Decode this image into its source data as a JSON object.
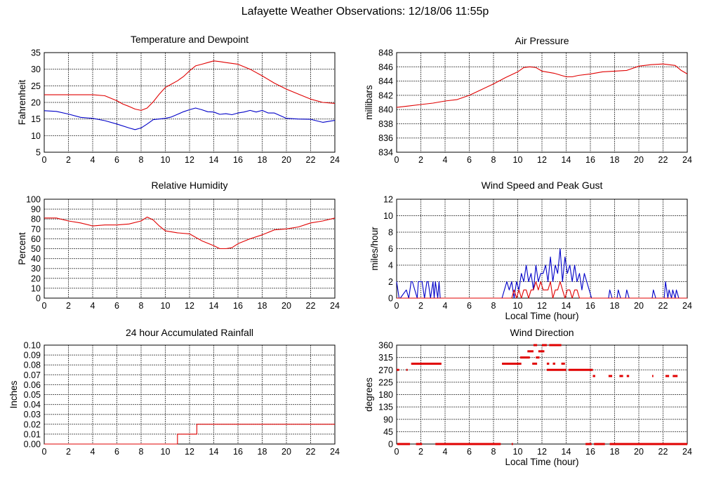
{
  "page": {
    "title": "Lafayette Weather Observations: 12/18/06 11:55p"
  },
  "colors": {
    "red": "#e00000",
    "blue": "#0000c8",
    "grid": "#555555"
  },
  "chart_data": [
    {
      "id": "temp",
      "type": "line",
      "title": "Temperature and Dewpoint",
      "xlabel": "",
      "ylabel": "Fahrenheit",
      "xlim": [
        0,
        24
      ],
      "ylim": [
        5,
        35
      ],
      "xticks": [
        0,
        2,
        4,
        6,
        8,
        10,
        12,
        14,
        16,
        18,
        20,
        22,
        24
      ],
      "yticks": [
        5,
        10,
        15,
        20,
        25,
        30,
        35
      ],
      "series": [
        {
          "color": "red",
          "x": [
            0,
            1,
            2,
            3,
            4,
            5,
            6,
            6.5,
            7,
            7.5,
            8,
            8.5,
            9,
            9.5,
            10,
            10.5,
            11,
            11.5,
            12,
            12.5,
            13,
            13.5,
            14,
            14.5,
            15,
            16,
            17,
            18,
            19,
            20,
            21,
            22,
            23,
            24
          ],
          "y": [
            22.3,
            22.3,
            22.3,
            22.3,
            22.3,
            22,
            20.5,
            19.5,
            18.8,
            18,
            17.6,
            18.3,
            20.2,
            22.5,
            24.5,
            25.5,
            26.5,
            27.8,
            29.5,
            31,
            31.5,
            32,
            32.5,
            32.3,
            32,
            31.5,
            30,
            28,
            25.8,
            24,
            22.5,
            21,
            20,
            19.7
          ]
        },
        {
          "color": "blue",
          "x": [
            0,
            1,
            2,
            3,
            4,
            5,
            6,
            7,
            7.5,
            8,
            8.5,
            9,
            10,
            10.5,
            11,
            11.5,
            12,
            12.5,
            13,
            13.5,
            14,
            14.5,
            15,
            15.5,
            16,
            16.5,
            17,
            17.5,
            18,
            18.5,
            19,
            20,
            21,
            22,
            23,
            24
          ],
          "y": [
            17.5,
            17.3,
            16.5,
            15.5,
            15.2,
            14.5,
            13.5,
            12.3,
            11.8,
            12.3,
            13.5,
            14.8,
            15.2,
            15.6,
            16.4,
            17.2,
            17.8,
            18.3,
            17.8,
            17.2,
            17.1,
            16.4,
            16.6,
            16.3,
            16.8,
            17.1,
            17.6,
            17.1,
            17.6,
            16.8,
            16.8,
            15.2,
            15,
            14.9,
            14,
            14.6
          ]
        }
      ]
    },
    {
      "id": "pressure",
      "type": "line",
      "title": "Air Pressure",
      "xlabel": "",
      "ylabel": "millibars",
      "xlim": [
        0,
        24
      ],
      "ylim": [
        834,
        848
      ],
      "xticks": [
        0,
        2,
        4,
        6,
        8,
        10,
        12,
        14,
        16,
        18,
        20,
        22,
        24
      ],
      "yticks": [
        834,
        836,
        838,
        840,
        842,
        844,
        846,
        848
      ],
      "series": [
        {
          "color": "red",
          "x": [
            0,
            1,
            2,
            3,
            4,
            5,
            6,
            7,
            8,
            9,
            10,
            10.5,
            11,
            11.5,
            12,
            13,
            14,
            14.5,
            15,
            16,
            17,
            18,
            19,
            20,
            21,
            22,
            23,
            23.5,
            24
          ],
          "y": [
            840.3,
            840.5,
            840.7,
            840.9,
            841.2,
            841.4,
            842,
            842.8,
            843.6,
            844.5,
            845.3,
            845.9,
            846,
            845.9,
            845.4,
            845.1,
            844.6,
            844.6,
            844.8,
            845,
            845.3,
            845.4,
            845.5,
            846.1,
            846.3,
            846.4,
            846.2,
            845.5,
            845
          ]
        }
      ]
    },
    {
      "id": "humidity",
      "type": "line",
      "title": "Relative Humidity",
      "xlabel": "",
      "ylabel": "Percent",
      "xlim": [
        0,
        24
      ],
      "ylim": [
        0,
        100
      ],
      "xticks": [
        0,
        2,
        4,
        6,
        8,
        10,
        12,
        14,
        16,
        18,
        20,
        22,
        24
      ],
      "yticks": [
        0,
        10,
        20,
        30,
        40,
        50,
        60,
        70,
        80,
        90,
        100
      ],
      "series": [
        {
          "color": "red",
          "x": [
            0,
            1,
            2,
            3,
            4,
            5,
            6,
            7,
            8,
            8.5,
            9,
            9.5,
            10,
            11,
            12,
            13,
            14,
            14.5,
            15,
            15.5,
            16,
            17,
            18,
            19,
            20,
            21,
            22,
            23,
            24
          ],
          "y": [
            81,
            81,
            78,
            76,
            73,
            74,
            74,
            75,
            78,
            82,
            79,
            73,
            68,
            66,
            65,
            58,
            53,
            50,
            50,
            51,
            55,
            60,
            64,
            69,
            70,
            72,
            76,
            78,
            81
          ]
        }
      ]
    },
    {
      "id": "wind",
      "type": "line",
      "title": "Wind Speed and Peak Gust",
      "xlabel": "Local Time (hour)",
      "ylabel": "miles/hour",
      "xlim": [
        0,
        24
      ],
      "ylim": [
        0,
        12
      ],
      "xticks": [
        0,
        2,
        4,
        6,
        8,
        10,
        12,
        14,
        16,
        18,
        20,
        22,
        24
      ],
      "yticks": [
        0,
        2,
        4,
        6,
        8,
        10,
        12
      ],
      "series": [
        {
          "color": "blue",
          "x": [
            0,
            0.2,
            0.3,
            0.8,
            1,
            1.2,
            1.3,
            1.7,
            1.8,
            2.1,
            2.3,
            2.5,
            2.6,
            2.8,
            3,
            3.1,
            3.2,
            3.4,
            3.5,
            3.6,
            3.8,
            8.7,
            8.9,
            9.1,
            9.3,
            9.5,
            9.7,
            9.9,
            10.1,
            10.3,
            10.5,
            10.7,
            10.9,
            11.1,
            11.3,
            11.5,
            11.7,
            11.9,
            12.1,
            12.3,
            12.5,
            12.7,
            12.9,
            13.1,
            13.3,
            13.5,
            13.7,
            13.9,
            14.1,
            14.3,
            14.5,
            14.7,
            14.9,
            15.1,
            15.3,
            15.5,
            15.7,
            15.9,
            16.1,
            17.5,
            17.6,
            17.8,
            18.2,
            18.3,
            18.5,
            18.9,
            19,
            19.2,
            21.1,
            21.2,
            21.4,
            22.1,
            22.2,
            22.4,
            22.5,
            22.7,
            22.8,
            23,
            23.1,
            23.3
          ],
          "y": [
            2,
            0,
            0,
            1,
            0,
            2,
            2,
            0,
            2,
            2,
            0,
            2,
            2,
            0,
            2,
            0,
            2,
            0,
            2,
            0,
            0,
            0,
            1,
            2,
            1,
            2,
            0,
            2,
            1,
            3,
            2,
            4,
            2,
            3,
            1,
            4,
            2,
            3,
            3,
            4,
            2,
            5,
            2,
            4,
            3,
            6,
            2,
            5,
            3,
            4,
            2,
            4,
            2,
            3,
            1,
            3,
            2,
            1,
            0,
            0,
            1,
            0,
            0,
            1,
            0,
            0,
            1,
            0,
            0,
            1,
            0,
            0,
            2,
            0,
            1,
            0,
            1,
            0,
            1,
            0
          ]
        },
        {
          "color": "red",
          "x": [
            0,
            9.5,
            9.7,
            9.9,
            10.1,
            10.3,
            10.5,
            10.7,
            10.9,
            11.1,
            11.3,
            11.5,
            11.7,
            11.9,
            12.1,
            12.3,
            12.5,
            12.7,
            12.9,
            13.1,
            13.3,
            13.5,
            13.7,
            13.9,
            14.1,
            14.3,
            14.5,
            14.7,
            14.9,
            15.1,
            15.3,
            24
          ],
          "y": [
            0,
            0,
            1,
            0,
            1,
            0,
            1,
            1,
            0,
            1,
            1,
            2,
            1,
            2,
            1,
            1,
            1,
            2,
            0,
            1,
            1,
            2,
            1,
            0,
            1,
            1,
            0,
            1,
            1,
            0,
            0,
            0
          ]
        }
      ]
    },
    {
      "id": "rain",
      "type": "line",
      "title": "24 hour Accumulated Rainfall",
      "xlabel": "",
      "ylabel": "Inches",
      "xlim": [
        0,
        24
      ],
      "ylim": [
        0,
        0.1
      ],
      "xticks": [
        0,
        2,
        4,
        6,
        8,
        10,
        12,
        14,
        16,
        18,
        20,
        22,
        24
      ],
      "yticks": [
        "0.00",
        "0.01",
        "0.02",
        "0.03",
        "0.04",
        "0.05",
        "0.06",
        "0.07",
        "0.08",
        "0.09",
        "0.10"
      ],
      "series": [
        {
          "color": "red",
          "x": [
            0,
            11,
            11,
            12.6,
            12.6,
            24
          ],
          "y": [
            0,
            0,
            0.01,
            0.01,
            0.02,
            0.02
          ]
        }
      ]
    },
    {
      "id": "direction",
      "type": "scatter",
      "title": "Wind Direction",
      "xlabel": "Local Time (hour)",
      "ylabel": "degrees",
      "xlim": [
        0,
        24
      ],
      "ylim": [
        0,
        360
      ],
      "xticks": [
        0,
        2,
        4,
        6,
        8,
        10,
        12,
        14,
        16,
        18,
        20,
        22,
        24
      ],
      "yticks": [
        0,
        45,
        90,
        135,
        180,
        225,
        270,
        315,
        360
      ],
      "segments": [
        {
          "x0": 0.05,
          "x1": 1.1,
          "y": 0
        },
        {
          "x0": 1.6,
          "x1": 2.1,
          "y": 0
        },
        {
          "x0": 3.2,
          "x1": 8.6,
          "y": 0
        },
        {
          "x0": 9.5,
          "x1": 9.6,
          "y": 0
        },
        {
          "x0": 15.6,
          "x1": 16.1,
          "y": 0
        },
        {
          "x0": 16.3,
          "x1": 17.2,
          "y": 0
        },
        {
          "x0": 17.6,
          "x1": 24,
          "y": 0
        },
        {
          "x0": 0,
          "x1": 0.2,
          "y": 270
        },
        {
          "x0": 0.8,
          "x1": 0.9,
          "y": 270
        },
        {
          "x0": 1.2,
          "x1": 3.7,
          "y": 292.5
        },
        {
          "x0": 8.7,
          "x1": 10.3,
          "y": 292.5
        },
        {
          "x0": 10.2,
          "x1": 11,
          "y": 315
        },
        {
          "x0": 11.5,
          "x1": 11.8,
          "y": 315
        },
        {
          "x0": 10.8,
          "x1": 11.3,
          "y": 337.5
        },
        {
          "x0": 11.7,
          "x1": 12.2,
          "y": 337.5
        },
        {
          "x0": 11.3,
          "x1": 11.6,
          "y": 360
        },
        {
          "x0": 12,
          "x1": 12.4,
          "y": 360
        },
        {
          "x0": 12.6,
          "x1": 13.6,
          "y": 360
        },
        {
          "x0": 11.2,
          "x1": 11.6,
          "y": 292.5
        },
        {
          "x0": 12.4,
          "x1": 12.6,
          "y": 292.5
        },
        {
          "x0": 12.9,
          "x1": 13.1,
          "y": 292.5
        },
        {
          "x0": 13.6,
          "x1": 13.9,
          "y": 292.5
        },
        {
          "x0": 12.4,
          "x1": 14,
          "y": 270
        },
        {
          "x0": 14.2,
          "x1": 16.2,
          "y": 270
        },
        {
          "x0": 16.2,
          "x1": 16.4,
          "y": 247.5
        },
        {
          "x0": 17.5,
          "x1": 17.8,
          "y": 247.5
        },
        {
          "x0": 18.4,
          "x1": 18.7,
          "y": 247.5
        },
        {
          "x0": 19,
          "x1": 19.2,
          "y": 247.5
        },
        {
          "x0": 21.1,
          "x1": 21.2,
          "y": 247.5
        },
        {
          "x0": 22.2,
          "x1": 22.5,
          "y": 247.5
        },
        {
          "x0": 22.8,
          "x1": 23.2,
          "y": 247.5
        }
      ]
    }
  ]
}
